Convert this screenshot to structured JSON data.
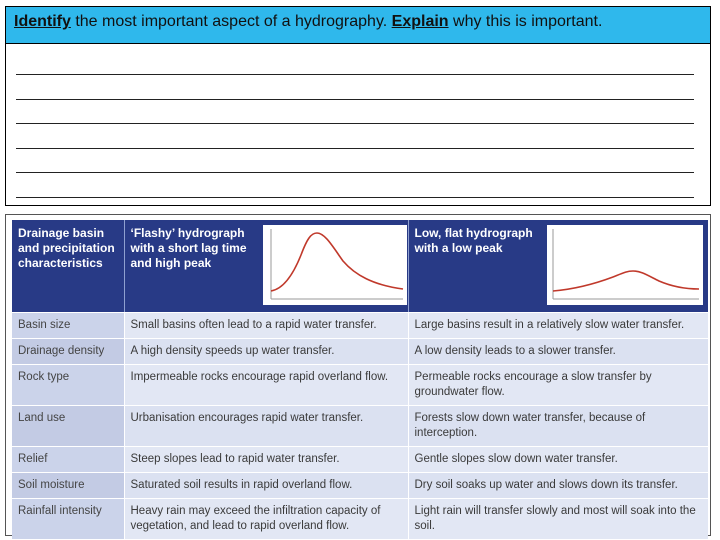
{
  "question": {
    "keyword1": "Identify",
    "part1": " the most important aspect of a hydrography. ",
    "keyword2": "Explain",
    "part2": " why this is important."
  },
  "answer_lines": 6,
  "table": {
    "headers": {
      "factor": "Drainage basin and precipitation characteristics",
      "flashy": "‘Flashy’ hydrograph with a short lag time and high peak",
      "flat": "Low, flat hydrograph with a low peak"
    },
    "rows": [
      {
        "factor": "Basin size",
        "flashy": "Small basins often lead to a rapid water transfer.",
        "flat": "Large basins result in a relatively slow water transfer."
      },
      {
        "factor": "Drainage density",
        "flashy": "A high density speeds up water transfer.",
        "flat": "A low density leads to a slower transfer."
      },
      {
        "factor": "Rock type",
        "flashy": "Impermeable rocks encourage rapid overland flow.",
        "flat": "Permeable rocks encourage a slow transfer by groundwater flow."
      },
      {
        "factor": "Land use",
        "flashy": "Urbanisation encourages rapid water transfer.",
        "flat": "Forests slow down water transfer, because of interception."
      },
      {
        "factor": "Relief",
        "flashy": "Steep slopes lead to rapid water transfer.",
        "flat": "Gentle slopes slow down water transfer."
      },
      {
        "factor": "Soil moisture",
        "flashy": "Saturated soil results in rapid overland flow.",
        "flat": "Dry soil soaks up water and slows down its transfer."
      },
      {
        "factor": "Rainfall intensity",
        "flashy": "Heavy rain may exceed the infiltration capacity of vegetation, and lead to rapid overland flow.",
        "flat": "Light rain will transfer slowly and most will soak into the soil."
      }
    ]
  },
  "colors": {
    "header_band": "#2fb8ec",
    "table_header": "#283a86",
    "curve": "#c0392b"
  }
}
